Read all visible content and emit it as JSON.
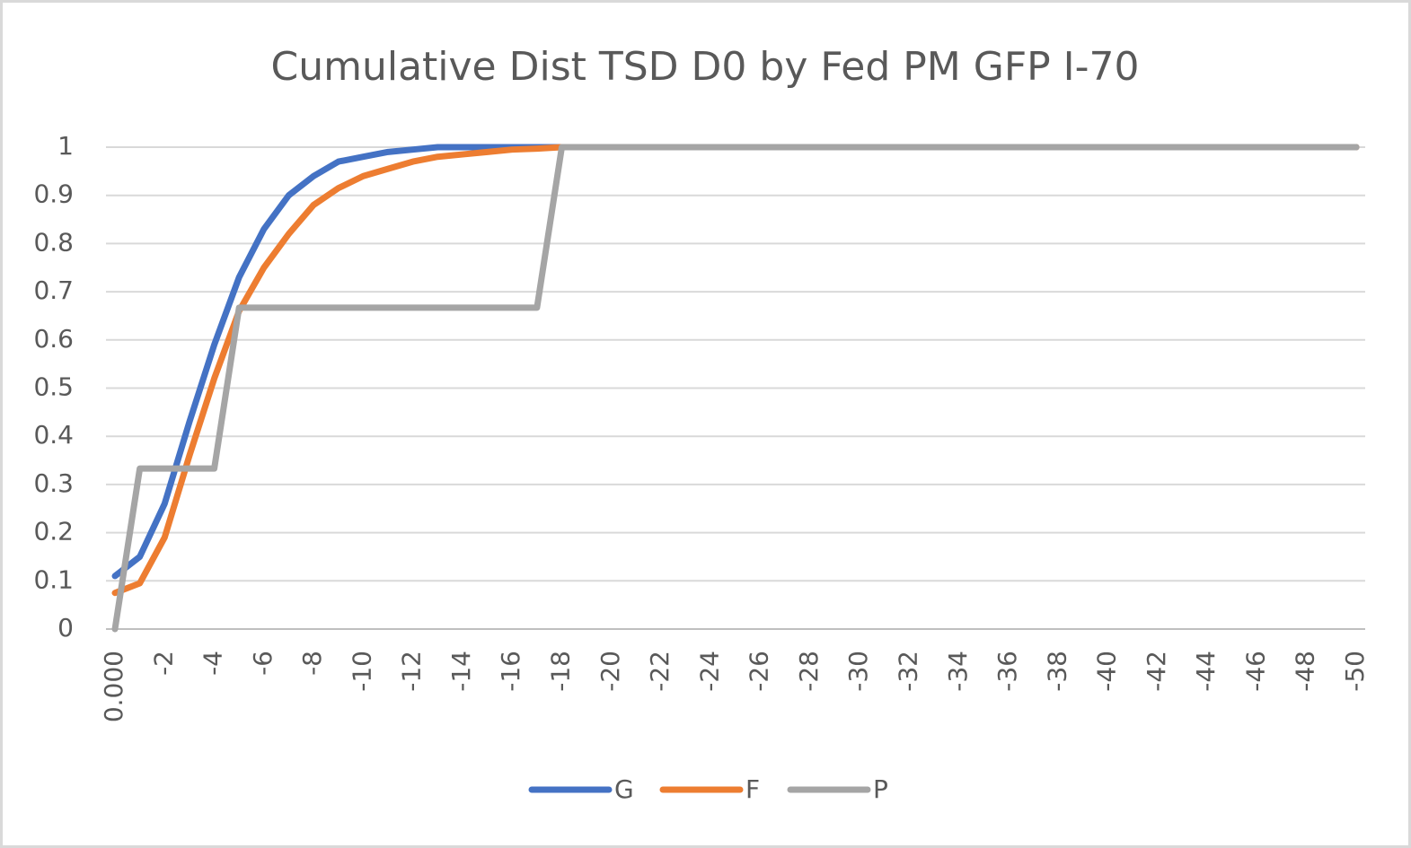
{
  "chart_data": {
    "type": "line",
    "title": "Cumulative Dist TSD D0 by Fed PM GFP I-70",
    "categories": [
      "0.000",
      null,
      "-2",
      null,
      "-4",
      null,
      "-6",
      null,
      "-8",
      null,
      "-10",
      null,
      "-12",
      null,
      "-14",
      null,
      "-16",
      null,
      "-18",
      null,
      "-20",
      null,
      "-22",
      null,
      "-24",
      null,
      "-26",
      null,
      "-28",
      null,
      "-30",
      null,
      "-32",
      null,
      "-34",
      null,
      "-36",
      null,
      "-38",
      null,
      "-40",
      null,
      "-42",
      null,
      "-44",
      null,
      "-46",
      null,
      "-48",
      null,
      "-50"
    ],
    "series": [
      {
        "name": "G",
        "color": "#4472c4",
        "values": [
          0.11,
          0.15,
          0.26,
          0.43,
          0.59,
          0.73,
          0.83,
          0.9,
          0.94,
          0.97,
          0.98,
          0.99,
          0.995,
          1,
          1,
          1,
          1,
          1,
          1,
          1,
          1,
          1,
          1,
          1,
          1,
          1,
          1,
          1,
          1,
          1,
          1,
          1,
          1,
          1,
          1,
          1,
          1,
          1,
          1,
          1,
          1,
          1,
          1,
          1,
          1,
          1,
          1,
          1,
          1,
          1,
          1
        ]
      },
      {
        "name": "F",
        "color": "#ed7d31",
        "values": [
          0.075,
          0.095,
          0.19,
          0.36,
          0.52,
          0.66,
          0.75,
          0.82,
          0.88,
          0.915,
          0.94,
          0.955,
          0.97,
          0.98,
          0.985,
          0.99,
          0.995,
          0.997,
          1,
          1,
          1,
          1,
          1,
          1,
          1,
          1,
          1,
          1,
          1,
          1,
          1,
          1,
          1,
          1,
          1,
          1,
          1,
          1,
          1,
          1,
          1,
          1,
          1,
          1,
          1,
          1,
          1,
          1,
          1,
          1,
          1
        ]
      },
      {
        "name": "P",
        "color": "#a5a5a5",
        "values": [
          0,
          0.333,
          0.333,
          0.333,
          0.333,
          0.667,
          0.667,
          0.667,
          0.667,
          0.667,
          0.667,
          0.667,
          0.667,
          0.667,
          0.667,
          0.667,
          0.667,
          0.667,
          1,
          1,
          1,
          1,
          1,
          1,
          1,
          1,
          1,
          1,
          1,
          1,
          1,
          1,
          1,
          1,
          1,
          1,
          1,
          1,
          1,
          1,
          1,
          1,
          1,
          1,
          1,
          1,
          1,
          1,
          1,
          1,
          1
        ]
      }
    ],
    "ylim": [
      0,
      1
    ],
    "yticks": [
      0,
      0.1,
      0.2,
      0.3,
      0.4,
      0.5,
      0.6,
      0.7,
      0.8,
      0.9,
      1
    ],
    "grid": true,
    "legend": "bottom"
  }
}
